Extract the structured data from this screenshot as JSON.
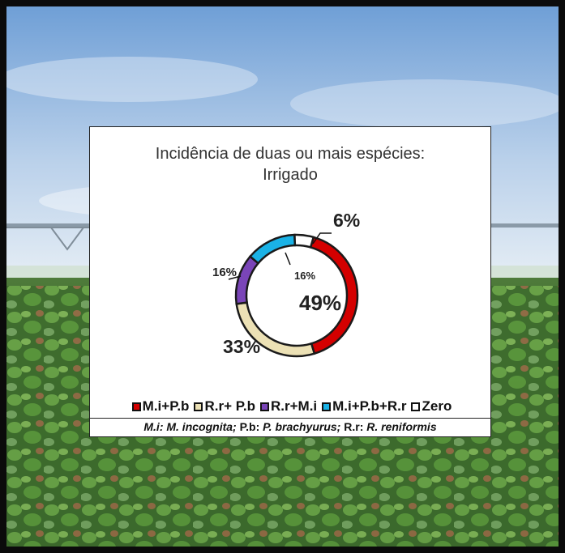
{
  "chart_data": {
    "type": "pie",
    "style": "donut",
    "title": "Incidência de duas ou mais espécies:",
    "subtitle": "Irrigado",
    "slices": [
      {
        "label": "M.i+P.b",
        "value": 49,
        "value_label": "49%",
        "color": "#d40000"
      },
      {
        "label": "R.r+ P.b",
        "value": 33,
        "value_label": "33%",
        "color": "#ece1b5"
      },
      {
        "label": "R.r+M.i",
        "value": 16,
        "value_label": "16%",
        "color": "#7a45b8"
      },
      {
        "label": "M.i+P.b+R.r",
        "value": 16,
        "value_label": "16%",
        "color": "#1ab2e6"
      },
      {
        "label": "Zero",
        "value": 6,
        "value_label": "6%",
        "color": "#ffffff"
      }
    ],
    "legend_position": "bottom"
  },
  "footnote": {
    "parts": [
      {
        "text": "M.i: M. incognita;",
        "italic": true
      },
      {
        "text": " P.b: ",
        "italic": false
      },
      {
        "text": "P. brachyurus;",
        "italic": true
      },
      {
        "text": " R.r: ",
        "italic": false
      },
      {
        "text": "R. reniformis",
        "italic": true
      }
    ]
  }
}
